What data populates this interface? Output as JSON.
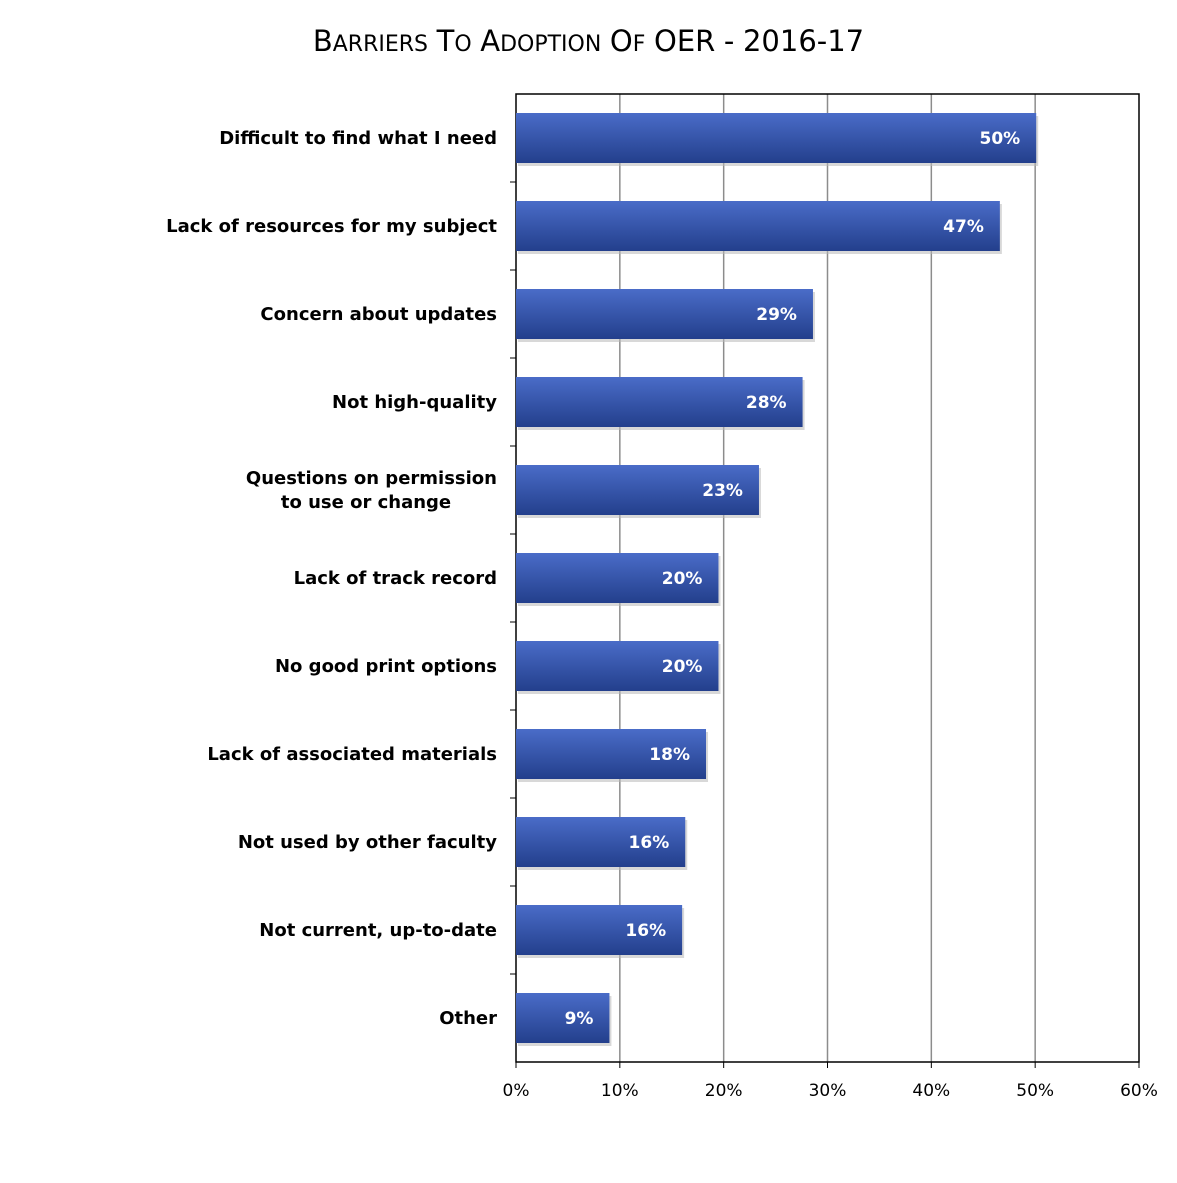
{
  "chart_data": {
    "type": "bar",
    "orientation": "horizontal",
    "title": "Barriers to Adoption of OER - 2016-17",
    "categories": [
      "Difficult to find what I need",
      "Lack of resources for my subject",
      "Concern about updates",
      "Not high-quality",
      "Questions on permission to use or change",
      "Lack of track record",
      "No good print options",
      "Lack of associated materials",
      "Not used by other faculty",
      "Not current, up-to-date",
      "Other"
    ],
    "category_lines": [
      [
        "Difficult to find what I need"
      ],
      [
        "Lack of resources for my subject"
      ],
      [
        "Concern about updates"
      ],
      [
        "Not high-quality"
      ],
      [
        "Questions on permission",
        "to use or change"
      ],
      [
        "Lack of track record"
      ],
      [
        "No good print options"
      ],
      [
        "Lack of associated materials"
      ],
      [
        "Not used by other faculty"
      ],
      [
        "Not current, up-to-date"
      ],
      [
        "Other"
      ]
    ],
    "values": [
      50,
      47,
      29,
      28,
      23,
      20,
      20,
      18,
      16,
      16,
      9
    ],
    "value_plot_positions": [
      50.1,
      46.6,
      28.6,
      27.6,
      23.4,
      19.5,
      19.5,
      18.3,
      16.3,
      16.0,
      9.0
    ],
    "data_labels": [
      "50%",
      "47%",
      "29%",
      "28%",
      "23%",
      "20%",
      "20%",
      "18%",
      "16%",
      "16%",
      "9%"
    ],
    "xlim": [
      0,
      60
    ],
    "xticks": [
      0,
      10,
      20,
      30,
      40,
      50,
      60
    ],
    "xtick_labels": [
      "0%",
      "10%",
      "20%",
      "30%",
      "40%",
      "50%",
      "60%"
    ],
    "xlabel": "",
    "ylabel": "",
    "grid": true,
    "legend": "none",
    "colors": {
      "bar_top": "#4a6cc8",
      "bar_bottom": "#233f8c",
      "grid": "#8c8c8c",
      "axis": "#000000",
      "data_label": "#ffffff"
    }
  }
}
